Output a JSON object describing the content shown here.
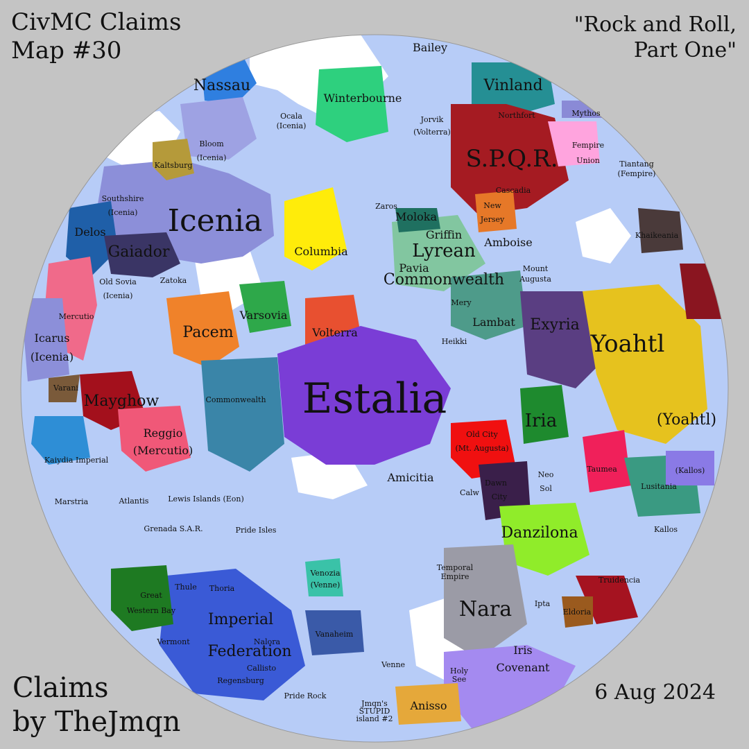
{
  "header": {
    "title_line1": "CivMC Claims",
    "title_line2": "Map #30",
    "subtitle_line1": "\"Rock and Roll,",
    "subtitle_line2": "Part One\""
  },
  "footer": {
    "credit_line1": "Claims",
    "credit_line2": "by TheJmqn",
    "date": "6 Aug 2024"
  },
  "colors": {
    "background": "#c4c4c4",
    "ocean": "#b7ccf7",
    "land": "#ffffff"
  },
  "labels": {
    "estalia": "Estalia",
    "icenia": "Icenia",
    "spqr": "S.P.Q.R.",
    "yoahtl": "Yoahtl",
    "yoahtl2": "(Yoahtl)",
    "nara": "Nara",
    "iria": "Iria",
    "exyria": "Exyria",
    "danzilona": "Danzilona",
    "nassau": "Nassau",
    "winterbourne": "Winterbourne",
    "vinland": "Vinland",
    "bailey": "Bailey",
    "columbia": "Columbia",
    "pacem": "Pacem",
    "varsovia": "Varsovia",
    "volterra": "Volterra",
    "commonwealth": "Commonwealth",
    "lyrean1": "Lyrean",
    "lyrean2": "Commonwealth",
    "pavia": "Pavia",
    "griffin": "Griffin",
    "moloka": "Moloka",
    "amboise": "Amboise",
    "lambat": "Lambat",
    "heikki": "Heikki",
    "mery": "Mery",
    "gaiador": "Gaiador",
    "delos": "Delos",
    "zatoka": "Zatoka",
    "southshire1": "Southshire",
    "southshire2": "(Icenia)",
    "bloom1": "Bloom",
    "bloom2": "(Icenia)",
    "oldsovia1": "Old Sovia",
    "oldsovia2": "(Icenia)",
    "mercutio": "Mercutio",
    "icarus1": "Icarus",
    "icarus2": "(Icenia)",
    "mayghow": "Mayghow",
    "reggio1": "Reggio",
    "reggio2": "(Mercutio)",
    "kaiydia": "Kaiydia Imperial",
    "marstria": "Marstria",
    "lewis": "Lewis Islands (Eon)",
    "grenada": "Grenada S.A.R.",
    "pride_isles": "Pride Isles",
    "amicitia": "Amicitia",
    "oldcity1": "Old City",
    "oldcity2": "(Mt. Augusta)",
    "fempire1": "Fempire",
    "fempire2": "Union",
    "tiantang1": "Tiantang",
    "tiantang2": "(Fempire)",
    "newjersey1": "New",
    "newjersey2": "Jersey",
    "jorvik1": "Jorvik",
    "jorvik2": "(Volterra)",
    "kallos": "Kallos",
    "kallos2": "(Kallos)",
    "lusitania": "Lusitania",
    "taumea": "Taumea",
    "truidencia": "Truidencia",
    "eldoria": "Eldoria",
    "ipta": "Ipta",
    "neosol1": "Neo",
    "neosol2": "Sol",
    "dawn1": "Dawn",
    "dawn2": "City",
    "calw": "Calw",
    "iris1": "Iris",
    "iris2": "Covenant",
    "venozia1": "Venozia",
    "venozia2": "(Venne)",
    "venne": "Venne",
    "anisso": "Anisso",
    "thule": "Thule",
    "thoria": "Thoria",
    "imperial1": "Imperial",
    "imperial2": "Federation",
    "great1": "Great",
    "great2": "Western Bay",
    "vermont": "Vermont",
    "nalora": "Nalora",
    "callisto": "Callisto",
    "regensburg": "Regensburg",
    "vanaheim": "Vanaheim",
    "pride_rock": "Pride Rock",
    "temporal1": "Temporal",
    "temporal2": "Empire",
    "mount1": "Mount",
    "mount2": "Augusta",
    "varani": "Varani",
    "kaltsburg": "Kaltsburg",
    "ocala1": "Ocala",
    "ocala2": "(Icenia)",
    "jmqn1": "Jmqn's",
    "jmqn2": "STUPID",
    "jmqn3": "island #2",
    "holysee1": "Holy",
    "holysee2": "See",
    "khaikeania": "Khaikeania",
    "mythos": "Mythos",
    "cascadia": "Cascadia",
    "northfort": "Northfort",
    "zaros": "Zaros",
    "atlantis": "Atlantis"
  }
}
